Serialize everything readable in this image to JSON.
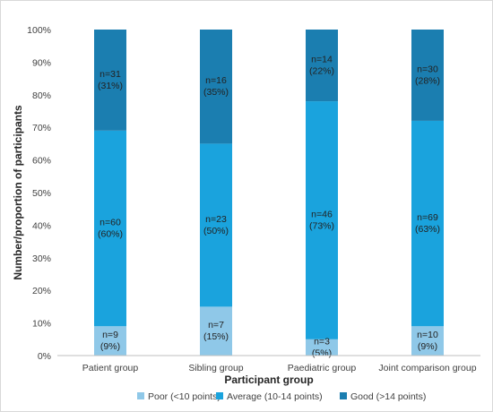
{
  "chart_data": {
    "type": "bar",
    "stacked": true,
    "categories": [
      "Patient group",
      "Sibling group",
      "Paediatric group",
      "Joint comparison group"
    ],
    "series": [
      {
        "name": "Poor (<10 points)",
        "color": "#8fc8e8",
        "values": [
          9,
          15,
          5,
          9
        ],
        "labels": [
          [
            "n=9",
            "(9%)"
          ],
          [
            "n=7",
            "(15%)"
          ],
          [
            "n=3",
            "(5%)"
          ],
          [
            "n=10",
            "(9%)"
          ]
        ]
      },
      {
        "name": "Average (10-14 points)",
        "color": "#1aa3dd",
        "values": [
          60,
          50,
          73,
          63
        ],
        "labels": [
          [
            "n=60",
            "(60%)"
          ],
          [
            "n=23",
            "(50%)"
          ],
          [
            "n=46",
            "(73%)"
          ],
          [
            "n=69",
            "(63%)"
          ]
        ]
      },
      {
        "name": "Good (>14 points)",
        "color": "#1b7eb0",
        "values": [
          31,
          35,
          22,
          28
        ],
        "labels": [
          [
            "n=31",
            "(31%)"
          ],
          [
            "n=16",
            "(35%)"
          ],
          [
            "n=14",
            "(22%)"
          ],
          [
            "n=30",
            "(28%)"
          ]
        ]
      }
    ],
    "xlabel": "Participant group",
    "ylabel": "Number/proportion of participants",
    "ylim": [
      0,
      100
    ],
    "yticks": [
      "0%",
      "10%",
      "20%",
      "30%",
      "40%",
      "50%",
      "60%",
      "70%",
      "80%",
      "90%",
      "100%"
    ],
    "grid": false,
    "legend": "bottom"
  }
}
